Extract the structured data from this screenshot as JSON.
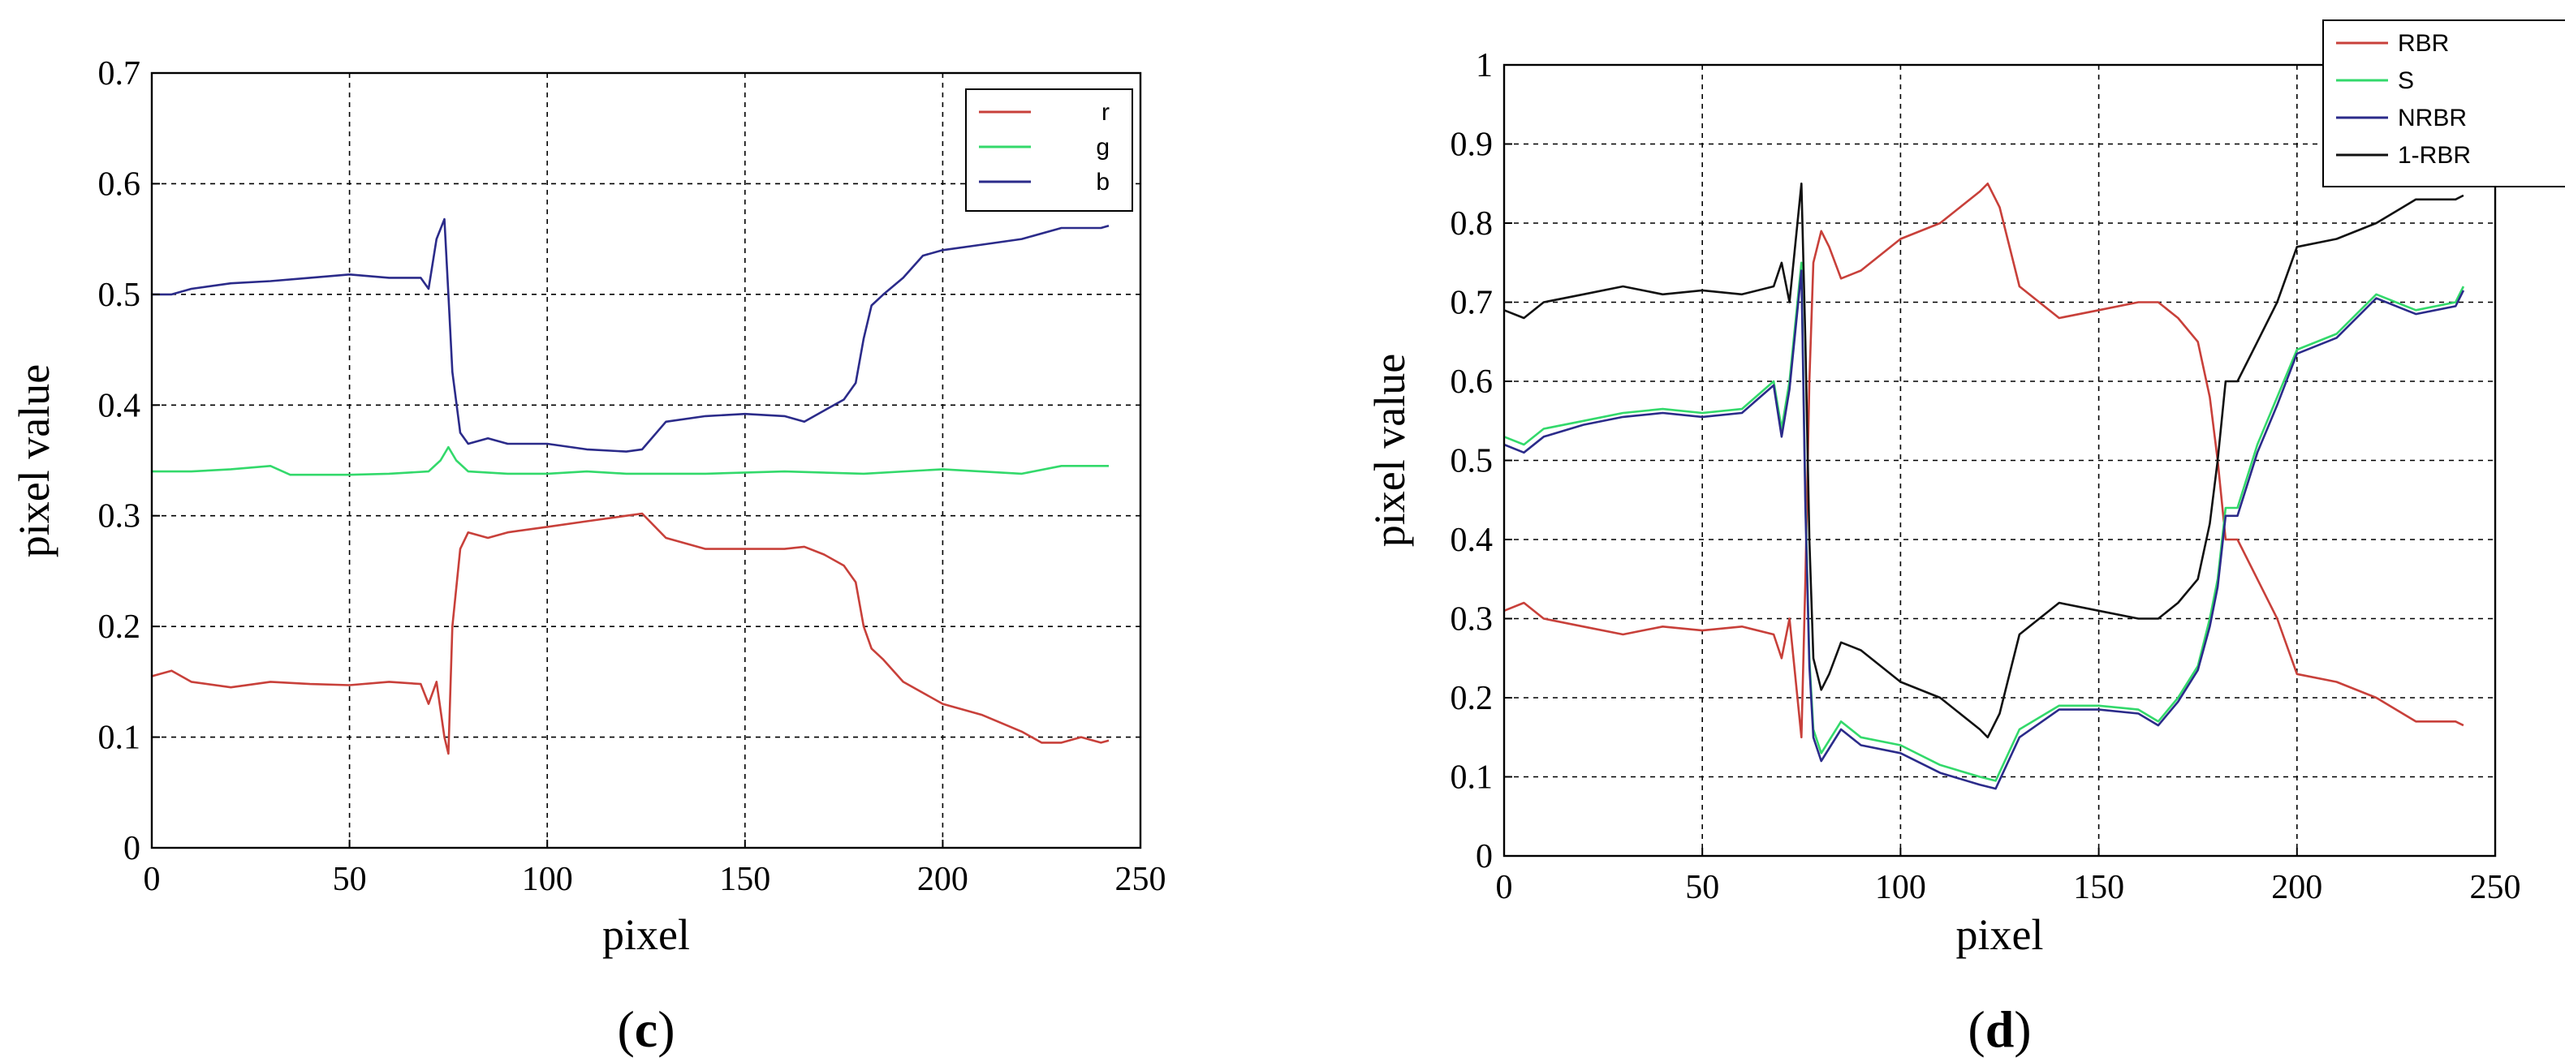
{
  "colors": {
    "red": "#c8403a",
    "green": "#33d96b",
    "blue": "#2b2b8a",
    "black": "#111111",
    "grid": "#000000"
  },
  "chart_data": [
    {
      "type": "line",
      "panel_label": "c",
      "xlabel": "pixel",
      "ylabel": "pixel value",
      "xlim": [
        0,
        250
      ],
      "ylim": [
        0,
        0.7
      ],
      "xticks": [
        "0",
        "50",
        "100",
        "150",
        "200",
        "250"
      ],
      "yticks": [
        "0",
        "0.1",
        "0.2",
        "0.3",
        "0.4",
        "0.5",
        "0.6",
        "0.7"
      ],
      "grid": true,
      "legend_position": "top-right",
      "series": [
        {
          "name": "r",
          "color": "#c8403a",
          "x": [
            0,
            5,
            10,
            20,
            30,
            40,
            50,
            60,
            68,
            70,
            72,
            74,
            75,
            76,
            78,
            80,
            85,
            90,
            100,
            110,
            120,
            124,
            130,
            140,
            150,
            160,
            165,
            170,
            175,
            178,
            180,
            182,
            185,
            190,
            200,
            210,
            220,
            225,
            230,
            235,
            240,
            242
          ],
          "y": [
            0.155,
            0.16,
            0.15,
            0.145,
            0.15,
            0.148,
            0.147,
            0.15,
            0.148,
            0.13,
            0.15,
            0.1,
            0.085,
            0.2,
            0.27,
            0.285,
            0.28,
            0.285,
            0.29,
            0.295,
            0.3,
            0.302,
            0.28,
            0.27,
            0.27,
            0.27,
            0.272,
            0.265,
            0.255,
            0.24,
            0.2,
            0.18,
            0.17,
            0.15,
            0.13,
            0.12,
            0.105,
            0.095,
            0.095,
            0.1,
            0.095,
            0.097
          ]
        },
        {
          "name": "g",
          "color": "#33d96b",
          "x": [
            0,
            10,
            20,
            30,
            35,
            40,
            50,
            60,
            70,
            73,
            75,
            77,
            80,
            90,
            100,
            110,
            120,
            140,
            160,
            180,
            200,
            220,
            230,
            240,
            242
          ],
          "y": [
            0.34,
            0.34,
            0.342,
            0.345,
            0.337,
            0.337,
            0.337,
            0.338,
            0.34,
            0.35,
            0.362,
            0.35,
            0.34,
            0.338,
            0.338,
            0.34,
            0.338,
            0.338,
            0.34,
            0.338,
            0.342,
            0.338,
            0.345,
            0.345,
            0.345
          ]
        },
        {
          "name": "b",
          "color": "#2b2b8a",
          "x": [
            0,
            5,
            10,
            20,
            30,
            40,
            50,
            60,
            68,
            70,
            72,
            74,
            75,
            76,
            78,
            80,
            85,
            90,
            100,
            110,
            120,
            124,
            130,
            140,
            150,
            160,
            165,
            170,
            175,
            178,
            180,
            182,
            185,
            190,
            195,
            200,
            210,
            220,
            230,
            240,
            242
          ],
          "y": [
            0.5,
            0.5,
            0.505,
            0.51,
            0.512,
            0.515,
            0.518,
            0.515,
            0.515,
            0.505,
            0.55,
            0.568,
            0.5,
            0.43,
            0.375,
            0.365,
            0.37,
            0.365,
            0.365,
            0.36,
            0.358,
            0.36,
            0.385,
            0.39,
            0.392,
            0.39,
            0.385,
            0.395,
            0.405,
            0.42,
            0.46,
            0.49,
            0.5,
            0.515,
            0.535,
            0.54,
            0.545,
            0.55,
            0.56,
            0.56,
            0.562
          ]
        }
      ]
    },
    {
      "type": "line",
      "panel_label": "d",
      "xlabel": "pixel",
      "ylabel": "pixel value",
      "xlim": [
        0,
        250
      ],
      "ylim": [
        0,
        1
      ],
      "xticks": [
        "0",
        "50",
        "100",
        "150",
        "200",
        "250"
      ],
      "yticks": [
        "0",
        "0.1",
        "0.2",
        "0.3",
        "0.4",
        "0.5",
        "0.6",
        "0.7",
        "0.8",
        "0.9",
        "1"
      ],
      "grid": true,
      "legend_position": "top-right",
      "series": [
        {
          "name": "RBR",
          "color": "#c8403a",
          "x": [
            0,
            5,
            10,
            20,
            30,
            40,
            50,
            60,
            68,
            70,
            72,
            74,
            75,
            76,
            77,
            78,
            80,
            82,
            85,
            90,
            100,
            110,
            120,
            122,
            125,
            130,
            140,
            150,
            160,
            165,
            170,
            175,
            178,
            180,
            182,
            185,
            190,
            195,
            200,
            210,
            220,
            230,
            240,
            242
          ],
          "y": [
            0.31,
            0.32,
            0.3,
            0.29,
            0.28,
            0.29,
            0.285,
            0.29,
            0.28,
            0.25,
            0.3,
            0.2,
            0.15,
            0.35,
            0.6,
            0.75,
            0.79,
            0.77,
            0.73,
            0.74,
            0.78,
            0.8,
            0.84,
            0.85,
            0.82,
            0.72,
            0.68,
            0.69,
            0.7,
            0.7,
            0.68,
            0.65,
            0.58,
            0.5,
            0.4,
            0.4,
            0.35,
            0.3,
            0.23,
            0.22,
            0.2,
            0.17,
            0.17,
            0.165
          ]
        },
        {
          "name": "S",
          "color": "#33d96b",
          "x": [
            0,
            5,
            10,
            20,
            30,
            40,
            50,
            60,
            68,
            70,
            72,
            74,
            75,
            76,
            77,
            78,
            80,
            85,
            90,
            100,
            110,
            120,
            124,
            130,
            140,
            150,
            160,
            165,
            170,
            175,
            178,
            180,
            182,
            185,
            190,
            195,
            200,
            210,
            220,
            230,
            240,
            242
          ],
          "y": [
            0.53,
            0.52,
            0.54,
            0.55,
            0.56,
            0.565,
            0.56,
            0.565,
            0.6,
            0.54,
            0.6,
            0.7,
            0.75,
            0.45,
            0.25,
            0.16,
            0.13,
            0.17,
            0.15,
            0.14,
            0.115,
            0.1,
            0.095,
            0.16,
            0.19,
            0.19,
            0.185,
            0.17,
            0.2,
            0.24,
            0.3,
            0.35,
            0.44,
            0.44,
            0.52,
            0.58,
            0.64,
            0.66,
            0.71,
            0.69,
            0.7,
            0.72
          ]
        },
        {
          "name": "NRBR",
          "color": "#2b2b8a",
          "x": [
            0,
            5,
            10,
            20,
            30,
            40,
            50,
            60,
            68,
            70,
            72,
            74,
            75,
            76,
            77,
            78,
            80,
            85,
            90,
            100,
            110,
            120,
            124,
            130,
            140,
            150,
            160,
            165,
            170,
            175,
            178,
            180,
            182,
            185,
            190,
            195,
            200,
            210,
            220,
            230,
            240,
            242
          ],
          "y": [
            0.52,
            0.51,
            0.53,
            0.545,
            0.555,
            0.56,
            0.555,
            0.56,
            0.595,
            0.53,
            0.59,
            0.69,
            0.74,
            0.44,
            0.24,
            0.15,
            0.12,
            0.16,
            0.14,
            0.13,
            0.105,
            0.09,
            0.085,
            0.15,
            0.185,
            0.185,
            0.18,
            0.165,
            0.195,
            0.235,
            0.29,
            0.34,
            0.43,
            0.43,
            0.51,
            0.57,
            0.635,
            0.655,
            0.705,
            0.685,
            0.695,
            0.715
          ]
        },
        {
          "name": "1-RBR",
          "color": "#111111",
          "x": [
            0,
            5,
            10,
            20,
            30,
            40,
            50,
            60,
            68,
            70,
            72,
            74,
            75,
            76,
            77,
            78,
            80,
            82,
            85,
            90,
            100,
            110,
            120,
            122,
            125,
            130,
            140,
            150,
            160,
            165,
            170,
            175,
            178,
            180,
            182,
            185,
            190,
            195,
            200,
            210,
            220,
            230,
            240,
            242
          ],
          "y": [
            0.69,
            0.68,
            0.7,
            0.71,
            0.72,
            0.71,
            0.715,
            0.71,
            0.72,
            0.75,
            0.7,
            0.8,
            0.85,
            0.65,
            0.4,
            0.25,
            0.21,
            0.23,
            0.27,
            0.26,
            0.22,
            0.2,
            0.16,
            0.15,
            0.18,
            0.28,
            0.32,
            0.31,
            0.3,
            0.3,
            0.32,
            0.35,
            0.42,
            0.5,
            0.6,
            0.6,
            0.65,
            0.7,
            0.77,
            0.78,
            0.8,
            0.83,
            0.83,
            0.835
          ]
        }
      ]
    }
  ]
}
